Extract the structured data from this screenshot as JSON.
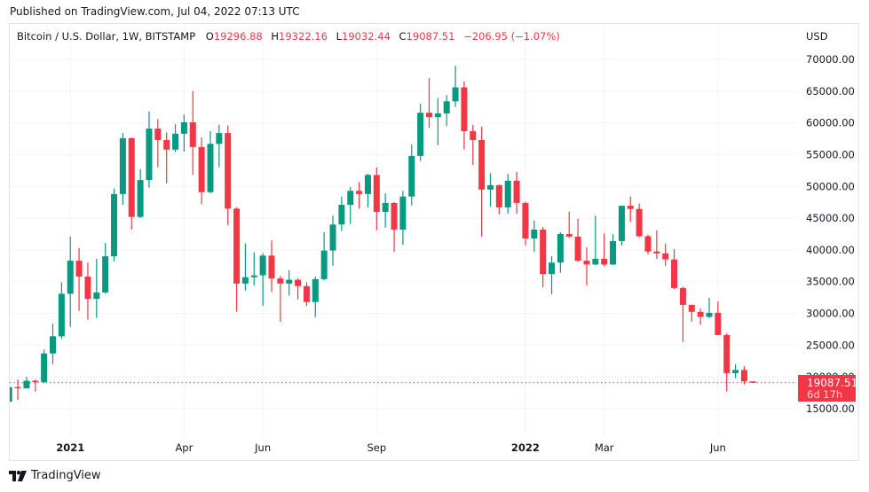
{
  "header": {
    "published": "Published on TradingView.com, Jul 04, 2022 07:13 UTC"
  },
  "legend": {
    "symbol": "Bitcoin / U.S. Dollar, 1W, BITSTAMP",
    "o_label": "O",
    "o_value": "19296.88",
    "h_label": "H",
    "h_value": "19322.16",
    "l_label": "L",
    "l_value": "19032.44",
    "c_label": "C",
    "c_value": "19087.51",
    "change": "−206.95 (−1.07%)"
  },
  "price_tag": {
    "price": "19087.51",
    "countdown": "6d 17h"
  },
  "footer": {
    "brand": "TradingView"
  },
  "colors": {
    "up": "#089981",
    "down": "#f23645",
    "grid": "#f0f3fa",
    "border": "#e0e3eb"
  },
  "chart_data": {
    "type": "candlestick",
    "interval": "1W",
    "currency_label": "USD",
    "ylim": [
      15000,
      70000
    ],
    "grid": true,
    "y_ticks": [
      "15000.00",
      "20000.00",
      "25000.00",
      "30000.00",
      "35000.00",
      "40000.00",
      "45000.00",
      "50000.00",
      "55000.00",
      "60000.00",
      "65000.00",
      "70000.00"
    ],
    "x_ticks": [
      {
        "label": "2021",
        "date": "2021-01-04",
        "bold": true
      },
      {
        "label": "Apr",
        "date": "2021-04-05",
        "bold": false
      },
      {
        "label": "Jun",
        "date": "2021-06-07",
        "bold": false
      },
      {
        "label": "Sep",
        "date": "2021-09-06",
        "bold": false
      },
      {
        "label": "2022",
        "date": "2022-01-03",
        "bold": true
      },
      {
        "label": "Mar",
        "date": "2022-03-07",
        "bold": false
      },
      {
        "label": "Jun",
        "date": "2022-06-06",
        "bold": false
      }
    ],
    "columns": [
      "week",
      "open",
      "high",
      "low",
      "close"
    ],
    "candles": [
      [
        "2020-11-16",
        16100,
        18800,
        15950,
        18400
      ],
      [
        "2020-11-23",
        18400,
        19600,
        16400,
        18200
      ],
      [
        "2020-11-30",
        18200,
        20000,
        18200,
        19400
      ],
      [
        "2020-12-07",
        19400,
        19600,
        17700,
        19200
      ],
      [
        "2020-12-14",
        19200,
        24300,
        19000,
        23700
      ],
      [
        "2020-12-21",
        23700,
        28400,
        22000,
        26400
      ],
      [
        "2020-12-28",
        26400,
        34900,
        26000,
        33100
      ],
      [
        "2021-01-04",
        33100,
        42100,
        27900,
        38300
      ],
      [
        "2021-01-11",
        38300,
        40300,
        30400,
        35800
      ],
      [
        "2021-01-18",
        35800,
        38000,
        29000,
        32300
      ],
      [
        "2021-01-25",
        32300,
        38600,
        29300,
        33300
      ],
      [
        "2021-02-01",
        33300,
        41100,
        33100,
        39000
      ],
      [
        "2021-02-08",
        39000,
        49700,
        38200,
        48800
      ],
      [
        "2021-02-15",
        48800,
        58400,
        47100,
        57600
      ],
      [
        "2021-02-22",
        57600,
        57700,
        43200,
        45200
      ],
      [
        "2021-03-01",
        45200,
        52700,
        45000,
        51000
      ],
      [
        "2021-03-08",
        51000,
        61800,
        49800,
        59100
      ],
      [
        "2021-03-15",
        59100,
        60600,
        53000,
        57300
      ],
      [
        "2021-03-22",
        57300,
        58500,
        50500,
        55800
      ],
      [
        "2021-03-29",
        55800,
        59800,
        55400,
        58300
      ],
      [
        "2021-04-05",
        58300,
        61300,
        55500,
        60100
      ],
      [
        "2021-04-12",
        60100,
        65000,
        51800,
        56200
      ],
      [
        "2021-04-19",
        56200,
        57700,
        47200,
        49100
      ],
      [
        "2021-04-26",
        49100,
        58700,
        48900,
        56700
      ],
      [
        "2021-05-03",
        56700,
        59700,
        53000,
        58400
      ],
      [
        "2021-05-10",
        58400,
        59600,
        43900,
        46500
      ],
      [
        "2021-05-17",
        46500,
        46700,
        30300,
        34700
      ],
      [
        "2021-05-24",
        34700,
        41000,
        33600,
        35700
      ],
      [
        "2021-05-31",
        35700,
        39600,
        34400,
        36000
      ],
      [
        "2021-06-07",
        36000,
        39500,
        31200,
        39100
      ],
      [
        "2021-06-14",
        39100,
        41500,
        33400,
        35500
      ],
      [
        "2021-06-21",
        35500,
        35900,
        28700,
        34700
      ],
      [
        "2021-06-28",
        34700,
        36800,
        32800,
        35300
      ],
      [
        "2021-07-05",
        35300,
        35500,
        32200,
        34300
      ],
      [
        "2021-07-12",
        34300,
        34900,
        31200,
        31800
      ],
      [
        "2021-07-19",
        31800,
        35800,
        29400,
        35400
      ],
      [
        "2021-07-26",
        35400,
        42800,
        35200,
        39900
      ],
      [
        "2021-08-02",
        39900,
        45400,
        37500,
        44000
      ],
      [
        "2021-08-09",
        44000,
        48400,
        43000,
        47100
      ],
      [
        "2021-08-16",
        47100,
        49900,
        44100,
        49300
      ],
      [
        "2021-08-23",
        49300,
        50700,
        46500,
        48800
      ],
      [
        "2021-08-30",
        48800,
        52000,
        46700,
        51800
      ],
      [
        "2021-09-06",
        51800,
        53000,
        43100,
        46000
      ],
      [
        "2021-09-13",
        46000,
        48900,
        43500,
        47400
      ],
      [
        "2021-09-20",
        47400,
        47500,
        39700,
        43200
      ],
      [
        "2021-09-27",
        43200,
        49300,
        40800,
        48400
      ],
      [
        "2021-10-04",
        48400,
        56600,
        47000,
        54800
      ],
      [
        "2021-10-11",
        54800,
        63000,
        54000,
        61600
      ],
      [
        "2021-10-18",
        61600,
        67100,
        59200,
        60900
      ],
      [
        "2021-10-25",
        60900,
        63900,
        56500,
        61500
      ],
      [
        "2021-11-01",
        61500,
        64400,
        59500,
        63400
      ],
      [
        "2021-11-08",
        63400,
        69000,
        62500,
        65600
      ],
      [
        "2021-11-15",
        65600,
        66500,
        55800,
        58700
      ],
      [
        "2021-11-22",
        58700,
        59700,
        53400,
        57300
      ],
      [
        "2021-11-29",
        57300,
        59400,
        42100,
        49500
      ],
      [
        "2021-12-06",
        49500,
        52100,
        46800,
        50200
      ],
      [
        "2021-12-13",
        50200,
        50300,
        45600,
        46700
      ],
      [
        "2021-12-20",
        46700,
        52000,
        45700,
        50900
      ],
      [
        "2021-12-27",
        50900,
        52300,
        45700,
        47400
      ],
      [
        "2022-01-03",
        47400,
        47600,
        40700,
        41800
      ],
      [
        "2022-01-10",
        41800,
        44600,
        39700,
        43200
      ],
      [
        "2022-01-17",
        43200,
        43600,
        34100,
        36200
      ],
      [
        "2022-01-24",
        36200,
        39000,
        33000,
        38000
      ],
      [
        "2022-01-31",
        38000,
        42800,
        36400,
        42500
      ],
      [
        "2022-02-07",
        42500,
        46000,
        41900,
        42100
      ],
      [
        "2022-02-14",
        42100,
        44900,
        38100,
        38300
      ],
      [
        "2022-02-21",
        38300,
        40400,
        34400,
        37700
      ],
      [
        "2022-02-28",
        37700,
        45400,
        37600,
        38600
      ],
      [
        "2022-03-07",
        38600,
        42600,
        37400,
        37700
      ],
      [
        "2022-03-14",
        37700,
        42500,
        37600,
        41400
      ],
      [
        "2022-03-21",
        41400,
        47000,
        40700,
        46950
      ],
      [
        "2022-03-28",
        46950,
        48400,
        44400,
        46450
      ],
      [
        "2022-04-04",
        46450,
        47300,
        42000,
        42150
      ],
      [
        "2022-04-11",
        42150,
        42400,
        39300,
        39750
      ],
      [
        "2022-04-18",
        39750,
        43100,
        38600,
        39450
      ],
      [
        "2022-04-25",
        39450,
        41000,
        37500,
        38500
      ],
      [
        "2022-05-02",
        38500,
        40100,
        33800,
        34000
      ],
      [
        "2022-05-09",
        34000,
        34200,
        25500,
        31350
      ],
      [
        "2022-05-16",
        31350,
        31400,
        28700,
        30250
      ],
      [
        "2022-05-23",
        30250,
        30800,
        28200,
        29450
      ],
      [
        "2022-05-30",
        29450,
        32450,
        29300,
        30100
      ],
      [
        "2022-06-06",
        30100,
        31900,
        26600,
        26600
      ],
      [
        "2022-06-13",
        26600,
        26900,
        17700,
        20600
      ],
      [
        "2022-06-20",
        20600,
        22000,
        19800,
        21100
      ],
      [
        "2022-06-27",
        21100,
        21700,
        18800,
        19300
      ],
      [
        "2022-07-04",
        19296.88,
        19322.16,
        19032.44,
        19087.51
      ]
    ],
    "last_price": 19087.51
  }
}
